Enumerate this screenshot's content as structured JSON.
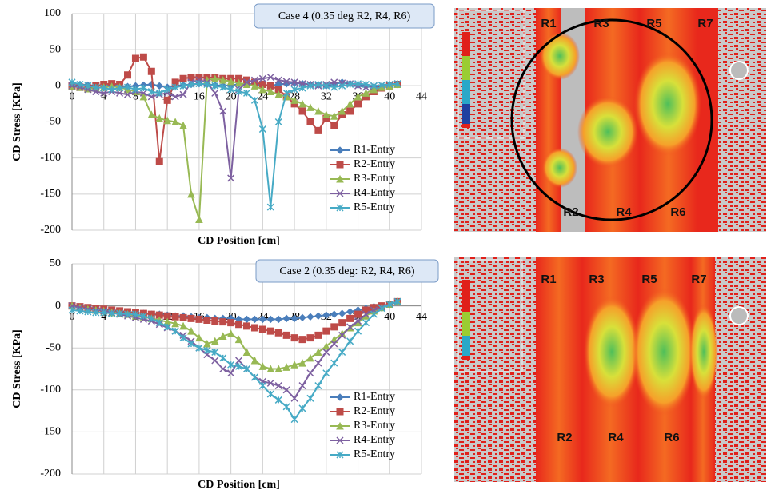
{
  "chart_data": [
    {
      "type": "line",
      "annotation": "Case 4 (0.35 deg R2, R4, R6)",
      "x_label": "CD Position [cm]",
      "y_label": "CD Stress [KPa]",
      "xlim": [
        0,
        44
      ],
      "ylim": [
        -200,
        100
      ],
      "xticks": [
        0,
        4,
        8,
        12,
        16,
        20,
        24,
        28,
        32,
        36,
        40,
        44
      ],
      "yticks": [
        -200,
        -150,
        -100,
        -50,
        0,
        50,
        100
      ],
      "grid": true,
      "legend": "lower right",
      "x": [
        0,
        1,
        2,
        3,
        4,
        5,
        6,
        7,
        8,
        9,
        10,
        11,
        12,
        13,
        14,
        15,
        16,
        17,
        18,
        19,
        20,
        21,
        22,
        23,
        24,
        25,
        26,
        27,
        28,
        29,
        30,
        31,
        32,
        33,
        34,
        35,
        36,
        37,
        38,
        39,
        40,
        41
      ],
      "series": [
        {
          "name": "R1-Entry",
          "color": "#4a7ebb",
          "marker": "diamond",
          "values": [
            0,
            2,
            1,
            0,
            1,
            2,
            0,
            -1,
            0,
            1,
            2,
            0,
            -2,
            0,
            1,
            2,
            3,
            2,
            1,
            0,
            1,
            2,
            3,
            2,
            1,
            0,
            2,
            3,
            4,
            3,
            2,
            1,
            0,
            2,
            5,
            3,
            1,
            0,
            -2,
            -1,
            0,
            2
          ]
        },
        {
          "name": "R2-Entry",
          "color": "#be4b48",
          "marker": "square",
          "values": [
            0,
            -2,
            -3,
            0,
            2,
            3,
            2,
            15,
            38,
            40,
            20,
            -105,
            -20,
            5,
            10,
            12,
            12,
            11,
            12,
            10,
            10,
            10,
            8,
            5,
            2,
            0,
            -5,
            -15,
            -25,
            -35,
            -50,
            -62,
            -45,
            -55,
            -40,
            -35,
            -25,
            -15,
            -8,
            -3,
            0,
            2
          ]
        },
        {
          "name": "R3-Entry",
          "color": "#98b954",
          "marker": "triangle",
          "values": [
            0,
            -2,
            -4,
            -3,
            -2,
            -1,
            -2,
            -5,
            -8,
            -15,
            -40,
            -45,
            -48,
            -50,
            -55,
            -150,
            -185,
            8,
            10,
            8,
            6,
            4,
            2,
            0,
            -5,
            -8,
            -12,
            -15,
            -20,
            -25,
            -30,
            -35,
            -40,
            -42,
            -35,
            -25,
            -15,
            -10,
            -5,
            -2,
            0,
            2
          ]
        },
        {
          "name": "R4-Entry",
          "color": "#7d60a0",
          "marker": "x",
          "values": [
            0,
            -2,
            -5,
            -8,
            -10,
            -8,
            -10,
            -12,
            -8,
            -10,
            -15,
            -12,
            -10,
            -15,
            -12,
            5,
            8,
            5,
            -10,
            -35,
            -128,
            -5,
            5,
            8,
            10,
            12,
            8,
            6,
            5,
            3,
            2,
            0,
            2,
            5,
            4,
            3,
            0,
            -2,
            0,
            1,
            2,
            3
          ]
        },
        {
          "name": "R5-Entry",
          "color": "#46aac5",
          "marker": "star",
          "values": [
            5,
            2,
            0,
            -2,
            -3,
            -5,
            -3,
            -2,
            -5,
            -3,
            -8,
            -10,
            -5,
            -2,
            0,
            2,
            3,
            2,
            0,
            -2,
            -5,
            -8,
            -10,
            -20,
            -60,
            -168,
            -50,
            -10,
            -5,
            -3,
            0,
            2,
            0,
            -2,
            0,
            2,
            3,
            2,
            0,
            1,
            2,
            3
          ]
        }
      ]
    },
    {
      "type": "line",
      "annotation": "Case 2 (0.35 deg: R2, R4, R6)",
      "x_label": "CD Position [cm]",
      "y_label": "CD Stress [KPa]",
      "xlim": [
        0,
        44
      ],
      "ylim": [
        -200,
        50
      ],
      "xticks": [
        0,
        4,
        8,
        12,
        16,
        20,
        24,
        28,
        32,
        36,
        40,
        44
      ],
      "yticks": [
        -200,
        -150,
        -100,
        -50,
        0,
        50
      ],
      "grid": true,
      "legend": "lower right",
      "x": [
        0,
        1,
        2,
        3,
        4,
        5,
        6,
        7,
        8,
        9,
        10,
        11,
        12,
        13,
        14,
        15,
        16,
        17,
        18,
        19,
        20,
        21,
        22,
        23,
        24,
        25,
        26,
        27,
        28,
        29,
        30,
        31,
        32,
        33,
        34,
        35,
        36,
        37,
        38,
        39,
        40,
        41
      ],
      "series": [
        {
          "name": "R1-Entry",
          "color": "#4a7ebb",
          "marker": "diamond",
          "values": [
            0,
            -2,
            -3,
            -4,
            -5,
            -6,
            -7,
            -8,
            -8,
            -9,
            -10,
            -10,
            -11,
            -12,
            -12,
            -13,
            -14,
            -14,
            -15,
            -15,
            -15,
            -16,
            -16,
            -16,
            -16,
            -16,
            -16,
            -15,
            -15,
            -14,
            -13,
            -12,
            -11,
            -10,
            -9,
            -7,
            -5,
            -3,
            -1,
            0,
            2,
            5
          ]
        },
        {
          "name": "R2-Entry",
          "color": "#be4b48",
          "marker": "square",
          "values": [
            0,
            -1,
            -2,
            -3,
            -4,
            -5,
            -6,
            -7,
            -8,
            -9,
            -10,
            -11,
            -12,
            -13,
            -14,
            -15,
            -16,
            -17,
            -18,
            -19,
            -20,
            -22,
            -24,
            -26,
            -28,
            -30,
            -32,
            -35,
            -38,
            -40,
            -38,
            -35,
            -30,
            -25,
            -20,
            -15,
            -10,
            -5,
            -2,
            0,
            2,
            5
          ]
        },
        {
          "name": "R3-Entry",
          "color": "#98b954",
          "marker": "triangle",
          "values": [
            0,
            -2,
            -4,
            -5,
            -6,
            -8,
            -9,
            -10,
            -12,
            -13,
            -15,
            -17,
            -19,
            -21,
            -24,
            -30,
            -38,
            -45,
            -42,
            -36,
            -33,
            -40,
            -55,
            -65,
            -72,
            -75,
            -75,
            -73,
            -70,
            -68,
            -62,
            -55,
            -48,
            -40,
            -33,
            -26,
            -20,
            -12,
            -6,
            -2,
            2,
            5
          ]
        },
        {
          "name": "R4-Entry",
          "color": "#7d60a0",
          "marker": "x",
          "values": [
            0,
            -2,
            -4,
            -5,
            -6,
            -8,
            -10,
            -12,
            -14,
            -16,
            -18,
            -22,
            -26,
            -30,
            -35,
            -42,
            -50,
            -58,
            -65,
            -75,
            -80,
            -65,
            -75,
            -85,
            -90,
            -92,
            -95,
            -100,
            -110,
            -95,
            -80,
            -68,
            -55,
            -45,
            -35,
            -25,
            -18,
            -10,
            -5,
            -2,
            2,
            5
          ]
        },
        {
          "name": "R5-Entry",
          "color": "#46aac5",
          "marker": "star",
          "values": [
            -5,
            -6,
            -7,
            -8,
            -8,
            -9,
            -9,
            -10,
            -10,
            -12,
            -15,
            -20,
            -25,
            -30,
            -38,
            -45,
            -50,
            -53,
            -55,
            -62,
            -70,
            -72,
            -75,
            -85,
            -95,
            -105,
            -112,
            -120,
            -135,
            -122,
            -110,
            -95,
            -80,
            -68,
            -55,
            -42,
            -30,
            -20,
            -10,
            -3,
            2,
            5
          ]
        }
      ]
    }
  ],
  "figures": [
    {
      "labels": [
        "R1",
        "R3",
        "R5",
        "R7",
        "R2",
        "R4",
        "R6"
      ]
    },
    {
      "labels": [
        "R1",
        "R3",
        "R5",
        "R7",
        "R2",
        "R4",
        "R6"
      ]
    }
  ]
}
